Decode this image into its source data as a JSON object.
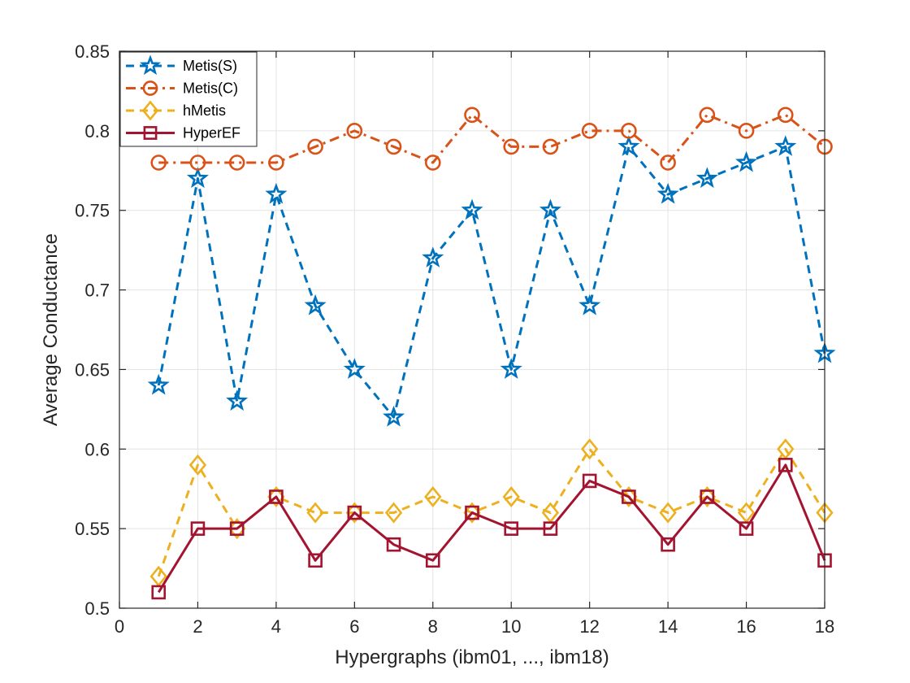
{
  "chart_data": {
    "type": "line",
    "xlabel": "Hypergraphs (ibm01, ..., ibm18)",
    "ylabel": "Average Conductance",
    "xlim": [
      0,
      18
    ],
    "ylim": [
      0.5,
      0.85
    ],
    "xticks": [
      "0",
      "2",
      "4",
      "6",
      "8",
      "10",
      "12",
      "14",
      "16",
      "18"
    ],
    "yticks": [
      "0.5",
      "0.55",
      "0.6",
      "0.65",
      "0.7",
      "0.75",
      "0.8",
      "0.85"
    ],
    "grid": true,
    "legend_position": "top-left",
    "x": [
      1,
      2,
      3,
      4,
      5,
      6,
      7,
      8,
      9,
      10,
      11,
      12,
      13,
      14,
      15,
      16,
      17,
      18
    ],
    "series": [
      {
        "name": "Metis(S)",
        "color": "#0072BD",
        "dash": "dashed",
        "marker": "star",
        "values": [
          0.64,
          0.77,
          0.63,
          0.76,
          0.69,
          0.65,
          0.62,
          0.72,
          0.75,
          0.65,
          0.75,
          0.69,
          0.79,
          0.76,
          0.77,
          0.78,
          0.79,
          0.66
        ]
      },
      {
        "name": "Metis(C)",
        "color": "#D95319",
        "dash": "dashdot",
        "marker": "circle",
        "values": [
          0.78,
          0.78,
          0.78,
          0.78,
          0.79,
          0.8,
          0.79,
          0.78,
          0.81,
          0.79,
          0.79,
          0.8,
          0.8,
          0.78,
          0.81,
          0.8,
          0.81,
          0.79
        ]
      },
      {
        "name": "hMetis",
        "color": "#EDB120",
        "dash": "dashed",
        "marker": "diamond",
        "values": [
          0.52,
          0.59,
          0.55,
          0.57,
          0.56,
          0.56,
          0.56,
          0.57,
          0.56,
          0.57,
          0.56,
          0.6,
          0.57,
          0.56,
          0.57,
          0.56,
          0.6,
          0.56
        ]
      },
      {
        "name": "HyperEF",
        "color": "#A2142F",
        "dash": "solid",
        "marker": "square",
        "values": [
          0.51,
          0.55,
          0.55,
          0.57,
          0.53,
          0.56,
          0.54,
          0.53,
          0.56,
          0.55,
          0.55,
          0.58,
          0.57,
          0.54,
          0.57,
          0.55,
          0.59,
          0.53
        ]
      }
    ]
  }
}
